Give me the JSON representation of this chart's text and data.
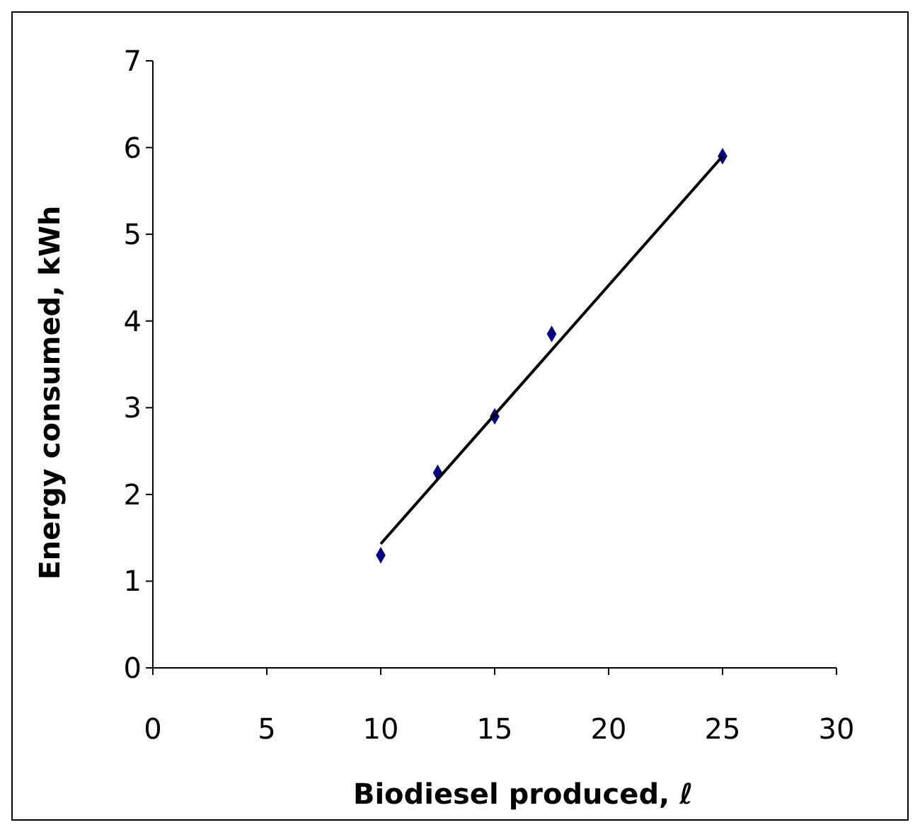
{
  "chart_data": {
    "type": "scatter",
    "xlabel": "Biodiesel produced, ℓ",
    "ylabel": "Energy consumed, kWh",
    "xlim": [
      0,
      30
    ],
    "ylim": [
      0,
      7
    ],
    "xticks": [
      0,
      5,
      10,
      15,
      20,
      25,
      30
    ],
    "yticks": [
      0,
      1,
      2,
      3,
      4,
      5,
      6,
      7
    ],
    "grid": false,
    "series": [
      {
        "color": "#000080",
        "marker": "diamond",
        "x": [
          10,
          12.5,
          15,
          17.5,
          25
        ],
        "values": [
          1.3,
          2.25,
          2.9,
          3.85,
          5.9
        ]
      },
      {
        "type": "line",
        "color": "#000000",
        "marker": "none",
        "line_style": "solid",
        "x": [
          10,
          25
        ],
        "values": [
          1.43,
          5.9
        ]
      }
    ]
  }
}
